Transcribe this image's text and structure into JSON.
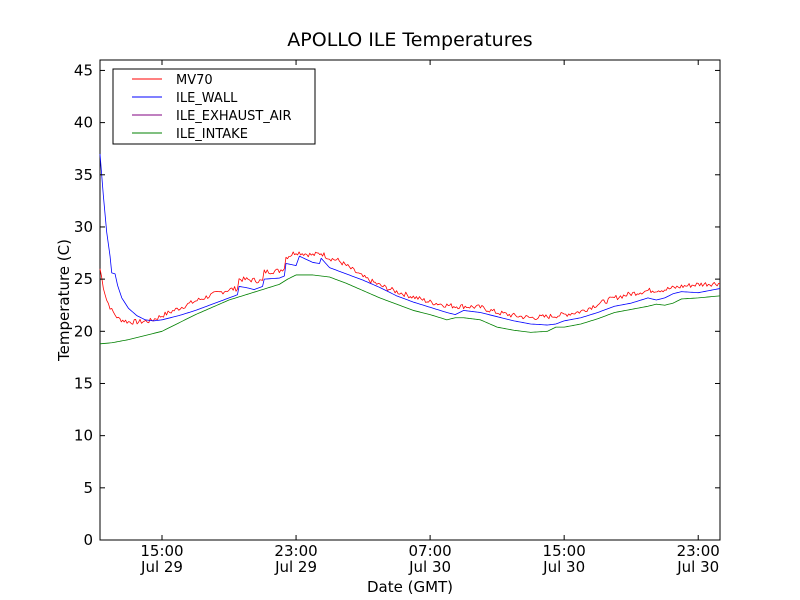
{
  "chart_data": {
    "type": "line",
    "title": "APOLLO ILE Temperatures",
    "xlabel": "Date (GMT)",
    "ylabel": "Temperature (C)",
    "xlim": [
      11.3,
      48.3
    ],
    "ylim": [
      0,
      46
    ],
    "x_unit": "hours since Jul 29 00:00 GMT",
    "yticks": [
      0,
      5,
      10,
      15,
      20,
      25,
      30,
      35,
      40,
      45
    ],
    "xticks": [
      {
        "value": 15,
        "time": "15:00",
        "date": "Jul 29"
      },
      {
        "value": 23,
        "time": "23:00",
        "date": "Jul 29"
      },
      {
        "value": 31,
        "time": "07:00",
        "date": "Jul 30"
      },
      {
        "value": 39,
        "time": "15:00",
        "date": "Jul 30"
      },
      {
        "value": 47,
        "time": "23:00",
        "date": "Jul 30"
      }
    ],
    "legend_position": "top-left",
    "series": [
      {
        "name": "MV70",
        "color": "#ff0000",
        "noise": 0.25,
        "points": [
          [
            11.3,
            26.0
          ],
          [
            11.5,
            24.3
          ],
          [
            11.7,
            23.0
          ],
          [
            12.0,
            22.0
          ],
          [
            12.4,
            21.2
          ],
          [
            13.0,
            20.9
          ],
          [
            13.6,
            20.9
          ],
          [
            14.3,
            21.0
          ],
          [
            15.0,
            21.5
          ],
          [
            16.0,
            22.2
          ],
          [
            17.0,
            22.9
          ],
          [
            18.0,
            23.5
          ],
          [
            19.0,
            24.0
          ],
          [
            19.5,
            24.1
          ],
          [
            19.6,
            25.0
          ],
          [
            20.5,
            24.9
          ],
          [
            21.0,
            24.8
          ],
          [
            21.1,
            25.7
          ],
          [
            22.0,
            25.8
          ],
          [
            22.3,
            26.1
          ],
          [
            22.4,
            27.1
          ],
          [
            23.0,
            27.6
          ],
          [
            24.0,
            27.3
          ],
          [
            24.5,
            27.5
          ],
          [
            25.0,
            27.0
          ],
          [
            25.5,
            26.8
          ],
          [
            26.0,
            26.3
          ],
          [
            27.0,
            25.2
          ],
          [
            28.0,
            24.4
          ],
          [
            29.0,
            23.8
          ],
          [
            30.0,
            23.3
          ],
          [
            31.0,
            22.8
          ],
          [
            32.0,
            22.5
          ],
          [
            32.5,
            22.4
          ],
          [
            33.0,
            22.4
          ],
          [
            34.0,
            22.3
          ],
          [
            35.0,
            21.8
          ],
          [
            36.0,
            21.5
          ],
          [
            37.0,
            21.3
          ],
          [
            38.0,
            21.4
          ],
          [
            39.0,
            21.6
          ],
          [
            40.0,
            21.9
          ],
          [
            41.0,
            22.6
          ],
          [
            42.0,
            23.2
          ],
          [
            43.0,
            23.6
          ],
          [
            44.0,
            23.9
          ],
          [
            45.0,
            24.0
          ],
          [
            46.0,
            24.3
          ],
          [
            47.0,
            24.5
          ],
          [
            48.3,
            24.6
          ]
        ]
      },
      {
        "name": "ILE_WALL",
        "color": "#0000ff",
        "noise": 0,
        "points": [
          [
            11.3,
            37.0
          ],
          [
            11.5,
            33.0
          ],
          [
            11.7,
            29.5
          ],
          [
            11.9,
            27.2
          ],
          [
            12.0,
            25.6
          ],
          [
            12.2,
            25.5
          ],
          [
            12.35,
            24.4
          ],
          [
            12.6,
            23.2
          ],
          [
            13.0,
            22.2
          ],
          [
            13.5,
            21.5
          ],
          [
            14.0,
            21.1
          ],
          [
            14.5,
            21.0
          ],
          [
            15.0,
            21.1
          ],
          [
            16.0,
            21.5
          ],
          [
            17.0,
            22.0
          ],
          [
            18.0,
            22.6
          ],
          [
            19.0,
            23.2
          ],
          [
            19.5,
            23.5
          ],
          [
            19.6,
            24.3
          ],
          [
            20.0,
            24.2
          ],
          [
            20.5,
            24.0
          ],
          [
            21.0,
            24.3
          ],
          [
            21.1,
            25.0
          ],
          [
            22.0,
            25.1
          ],
          [
            22.3,
            25.3
          ],
          [
            22.4,
            26.5
          ],
          [
            23.0,
            26.3
          ],
          [
            23.2,
            27.2
          ],
          [
            24.0,
            26.6
          ],
          [
            24.4,
            26.5
          ],
          [
            24.5,
            27.0
          ],
          [
            25.0,
            26.1
          ],
          [
            26.0,
            25.5
          ],
          [
            27.0,
            24.9
          ],
          [
            28.0,
            24.2
          ],
          [
            29.0,
            23.4
          ],
          [
            30.0,
            22.8
          ],
          [
            31.0,
            22.3
          ],
          [
            32.0,
            21.8
          ],
          [
            32.5,
            21.6
          ],
          [
            33.0,
            22.0
          ],
          [
            34.0,
            21.8
          ],
          [
            35.0,
            21.4
          ],
          [
            36.0,
            21.0
          ],
          [
            37.0,
            20.7
          ],
          [
            38.0,
            20.6
          ],
          [
            38.5,
            20.7
          ],
          [
            39.0,
            21.0
          ],
          [
            40.0,
            21.3
          ],
          [
            41.0,
            21.8
          ],
          [
            42.0,
            22.4
          ],
          [
            43.0,
            22.7
          ],
          [
            44.0,
            23.2
          ],
          [
            44.5,
            23.0
          ],
          [
            45.0,
            23.2
          ],
          [
            45.5,
            23.6
          ],
          [
            46.0,
            23.8
          ],
          [
            47.0,
            23.7
          ],
          [
            48.3,
            24.1
          ]
        ]
      },
      {
        "name": "ILE_EXHAUST_AIR",
        "color": "#800080",
        "noise": 0,
        "points": []
      },
      {
        "name": "ILE_INTAKE",
        "color": "#008000",
        "noise": 0,
        "points": [
          [
            11.3,
            18.8
          ],
          [
            12.0,
            18.9
          ],
          [
            13.0,
            19.2
          ],
          [
            14.0,
            19.6
          ],
          [
            15.0,
            20.0
          ],
          [
            16.0,
            20.8
          ],
          [
            17.0,
            21.6
          ],
          [
            18.0,
            22.3
          ],
          [
            19.0,
            23.0
          ],
          [
            20.0,
            23.5
          ],
          [
            21.0,
            24.0
          ],
          [
            22.0,
            24.5
          ],
          [
            22.5,
            25.0
          ],
          [
            23.0,
            25.4
          ],
          [
            24.0,
            25.4
          ],
          [
            25.0,
            25.2
          ],
          [
            26.0,
            24.6
          ],
          [
            27.0,
            23.9
          ],
          [
            28.0,
            23.2
          ],
          [
            29.0,
            22.6
          ],
          [
            30.0,
            22.0
          ],
          [
            31.0,
            21.6
          ],
          [
            32.0,
            21.1
          ],
          [
            32.5,
            21.3
          ],
          [
            33.0,
            21.3
          ],
          [
            34.0,
            21.1
          ],
          [
            35.0,
            20.4
          ],
          [
            36.0,
            20.1
          ],
          [
            37.0,
            19.9
          ],
          [
            38.0,
            20.0
          ],
          [
            38.5,
            20.4
          ],
          [
            39.0,
            20.4
          ],
          [
            40.0,
            20.7
          ],
          [
            41.0,
            21.2
          ],
          [
            42.0,
            21.8
          ],
          [
            43.0,
            22.1
          ],
          [
            44.0,
            22.4
          ],
          [
            44.5,
            22.6
          ],
          [
            45.0,
            22.5
          ],
          [
            45.5,
            22.7
          ],
          [
            46.0,
            23.1
          ],
          [
            47.0,
            23.2
          ],
          [
            48.3,
            23.4
          ]
        ]
      }
    ]
  }
}
